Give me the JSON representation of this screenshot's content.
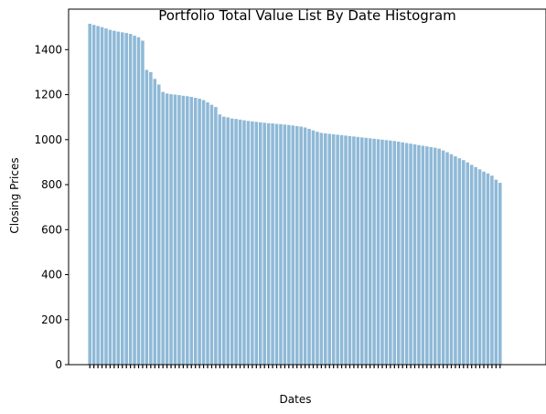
{
  "chart_data": {
    "type": "bar",
    "title": "Portfolio Total Value List By Date Histogram",
    "xlabel": "Dates",
    "ylabel": "Closing Prices",
    "ylim": [
      0,
      1580
    ],
    "yticks": [
      0,
      200,
      400,
      600,
      800,
      1000,
      1200,
      1400
    ],
    "grid": false,
    "bar_color": "#8fb9d7",
    "sort": "descending",
    "series": [
      {
        "values": [
          1515,
          1510,
          1505,
          1500,
          1494,
          1488,
          1484,
          1480,
          1477,
          1474,
          1470,
          1462,
          1455,
          1440,
          1310,
          1300,
          1270,
          1245,
          1212,
          1205,
          1202,
          1200,
          1198,
          1195,
          1193,
          1190,
          1186,
          1182,
          1176,
          1166,
          1155,
          1145,
          1112,
          1102,
          1099,
          1094,
          1092,
          1089,
          1086,
          1083,
          1081,
          1079,
          1077,
          1075,
          1073,
          1072,
          1070,
          1069,
          1067,
          1065,
          1063,
          1060,
          1058,
          1054,
          1048,
          1041,
          1035,
          1030,
          1028,
          1026,
          1024,
          1022,
          1020,
          1018,
          1016,
          1014,
          1012,
          1010,
          1008,
          1006,
          1004,
          1002,
          1000,
          998,
          996,
          994,
          991,
          988,
          985,
          982,
          979,
          976,
          973,
          970,
          967,
          964,
          960,
          952,
          944,
          935,
          926,
          917,
          909,
          899,
          888,
          878,
          868,
          858,
          850,
          840,
          822,
          808
        ]
      }
    ]
  }
}
